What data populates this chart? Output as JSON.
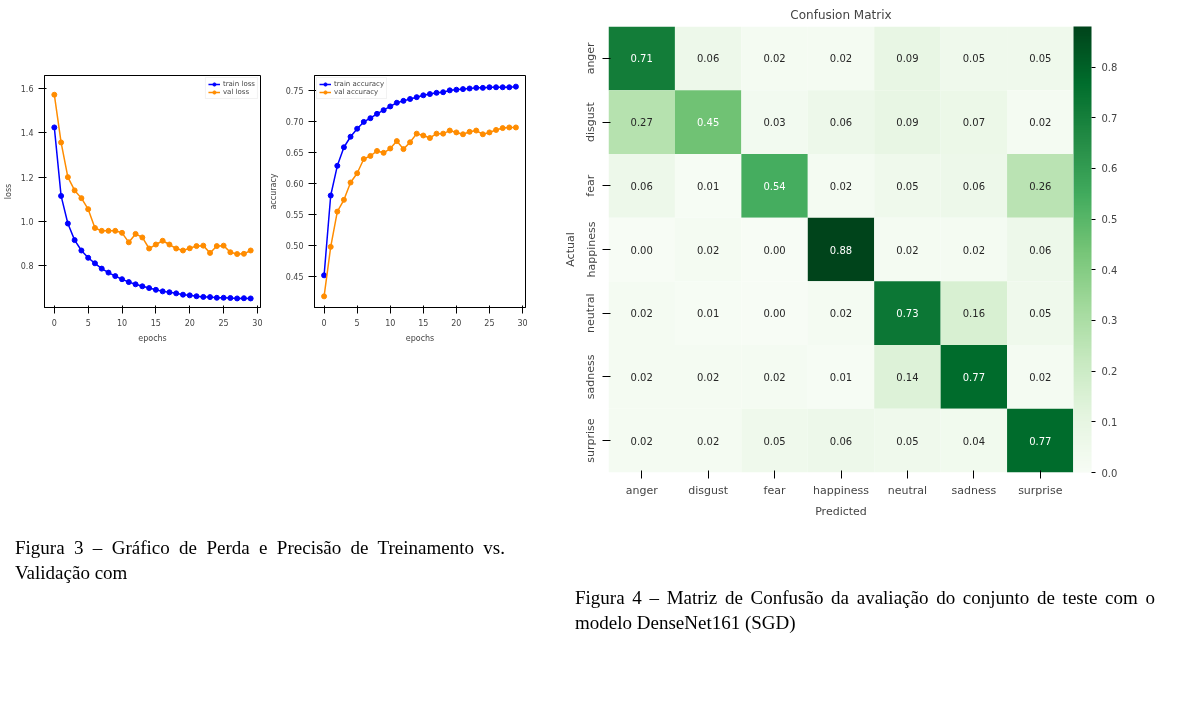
{
  "chart_data": [
    {
      "type": "line",
      "xlabel": "epochs",
      "ylabel": "loss",
      "x": [
        0,
        1,
        2,
        3,
        4,
        5,
        6,
        7,
        8,
        9,
        10,
        11,
        12,
        13,
        14,
        15,
        16,
        17,
        18,
        19,
        20,
        21,
        22,
        23,
        24,
        25,
        26,
        27,
        28,
        29
      ],
      "xlim": [
        -1.45,
        30.45
      ],
      "xticks": [
        0,
        5,
        10,
        15,
        20,
        25,
        30
      ],
      "ylim": [
        0.61,
        1.66
      ],
      "yticks": [
        0.8,
        {
          "value": 1.0,
          "label": "1.0"
        },
        1.2,
        1.4,
        1.6
      ],
      "grid": false,
      "legend": "top right",
      "marker": "circle",
      "line_style": "solid",
      "series": [
        {
          "name": "train loss",
          "color": "#0000ff",
          "values": [
            1.425,
            1.115,
            0.99,
            0.915,
            0.868,
            0.835,
            0.81,
            0.786,
            0.768,
            0.752,
            0.738,
            0.725,
            0.715,
            0.706,
            0.698,
            0.69,
            0.683,
            0.679,
            0.674,
            0.668,
            0.665,
            0.661,
            0.658,
            0.657,
            0.654,
            0.654,
            0.653,
            0.651,
            0.652,
            0.651
          ]
        },
        {
          "name": "val loss",
          "color": "#ff8c00",
          "values": [
            1.573,
            1.357,
            1.2,
            1.14,
            1.105,
            1.055,
            0.97,
            0.957,
            0.957,
            0.957,
            0.948,
            0.905,
            0.943,
            0.927,
            0.877,
            0.895,
            0.912,
            0.895,
            0.877,
            0.868,
            0.878,
            0.888,
            0.89,
            0.857,
            0.888,
            0.89,
            0.86,
            0.852,
            0.853,
            0.868
          ]
        }
      ],
      "annotations": [
        "Figura 3 – Gráfico de Perda e Precisão de Treinamento vs. Validação com"
      ]
    },
    {
      "type": "line",
      "xlabel": "epochs",
      "ylabel": "accuracy",
      "x": [
        0,
        1,
        2,
        3,
        4,
        5,
        6,
        7,
        8,
        9,
        10,
        11,
        12,
        13,
        14,
        15,
        16,
        17,
        18,
        19,
        20,
        21,
        22,
        23,
        24,
        25,
        26,
        27,
        28,
        29
      ],
      "xlim": [
        -1.45,
        30.45
      ],
      "xticks": [
        0,
        5,
        10,
        15,
        20,
        25,
        30
      ],
      "ylim": [
        0.4,
        0.775
      ],
      "yticks": [
        0.45,
        {
          "value": 0.5,
          "label": "0.50"
        },
        0.55,
        {
          "value": 0.6,
          "label": "0.60"
        },
        0.65,
        {
          "value": 0.7,
          "label": "0.70"
        },
        0.75
      ],
      "grid": false,
      "legend": "top left",
      "marker": "circle",
      "line_style": "solid",
      "series": [
        {
          "name": "train accuracy",
          "color": "#0000ff",
          "values": [
            0.452,
            0.581,
            0.629,
            0.659,
            0.676,
            0.689,
            0.7,
            0.706,
            0.713,
            0.719,
            0.725,
            0.731,
            0.734,
            0.737,
            0.74,
            0.743,
            0.745,
            0.747,
            0.748,
            0.751,
            0.752,
            0.753,
            0.754,
            0.755,
            0.755,
            0.756,
            0.756,
            0.756,
            0.756,
            0.757
          ]
        },
        {
          "name": "val accuracy",
          "color": "#ff8c00",
          "values": [
            0.418,
            0.498,
            0.555,
            0.574,
            0.602,
            0.617,
            0.64,
            0.645,
            0.653,
            0.65,
            0.657,
            0.669,
            0.656,
            0.667,
            0.681,
            0.678,
            0.674,
            0.681,
            0.681,
            0.686,
            0.683,
            0.68,
            0.684,
            0.686,
            0.68,
            0.683,
            0.687,
            0.69,
            0.691,
            0.691
          ]
        }
      ]
    },
    {
      "type": "heatmap",
      "title": "Confusion Matrix",
      "xlabel": "Predicted",
      "ylabel": "Actual",
      "categories": [
        "anger",
        "disgust",
        "fear",
        "happiness",
        "neutral",
        "sadness",
        "surprise"
      ],
      "y_categories": [
        "anger",
        "disgust",
        "fear",
        "happiness",
        "neutral",
        "sadness",
        "surprise"
      ],
      "cells": [
        [
          0.71,
          0.06,
          0.02,
          0.02,
          0.09,
          0.05,
          0.05
        ],
        [
          0.27,
          0.45,
          0.03,
          0.06,
          0.09,
          0.07,
          0.02
        ],
        [
          0.06,
          0.01,
          0.54,
          0.02,
          0.05,
          0.06,
          0.26
        ],
        [
          0.0,
          0.02,
          0.0,
          0.88,
          0.02,
          0.02,
          0.06
        ],
        [
          0.02,
          0.01,
          0.0,
          0.02,
          0.73,
          0.16,
          0.05
        ],
        [
          0.02,
          0.02,
          0.02,
          0.01,
          0.14,
          0.77,
          0.02
        ],
        [
          0.02,
          0.02,
          0.05,
          0.06,
          0.05,
          0.04,
          0.77
        ]
      ],
      "cell_labels": [
        [
          "0.71",
          "0.06",
          "0.02",
          "0.02",
          "0.09",
          "0.05",
          "0.05"
        ],
        [
          "0.27",
          "0.45",
          "0.03",
          "0.06",
          "0.09",
          "0.07",
          "0.02"
        ],
        [
          "0.06",
          "0.01",
          "0.54",
          "0.02",
          "0.05",
          "0.06",
          "0.26"
        ],
        [
          "0.00",
          "0.02",
          "0.00",
          "0.88",
          "0.02",
          "0.02",
          "0.06"
        ],
        [
          "0.02",
          "0.01",
          "0.00",
          "0.02",
          "0.73",
          "0.16",
          "0.05"
        ],
        [
          "0.02",
          "0.02",
          "0.02",
          "0.01",
          "0.14",
          "0.77",
          "0.02"
        ],
        [
          "0.02",
          "0.02",
          "0.05",
          "0.06",
          "0.05",
          "0.04",
          "0.77"
        ]
      ],
      "clim": [
        0,
        0.88
      ],
      "cticks": [
        {
          "value": 0,
          "label": "0.0"
        },
        0.1,
        0.2,
        0.3,
        0.4,
        0.5,
        0.6,
        0.7,
        0.8
      ],
      "annotations": [
        "Figura 4 – Matriz de Confusão da avaliação do conjunto de teste  com o modelo DenseNet161 (SGD)"
      ]
    }
  ]
}
